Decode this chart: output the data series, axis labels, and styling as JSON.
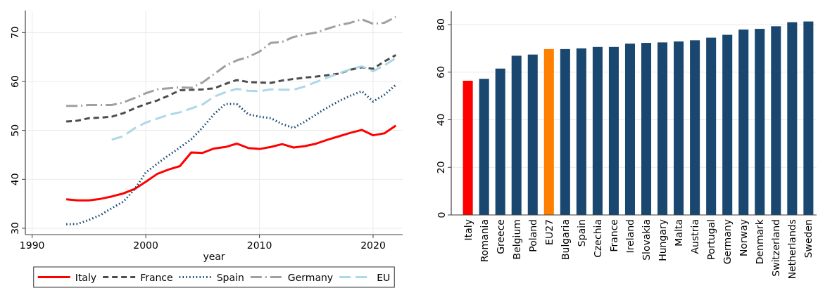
{
  "chart_data": [
    {
      "type": "line",
      "xlabel": "year",
      "x": [
        1993,
        1994,
        1995,
        1996,
        1997,
        1998,
        1999,
        2000,
        2001,
        2002,
        2003,
        2004,
        2005,
        2006,
        2007,
        2008,
        2009,
        2010,
        2011,
        2012,
        2013,
        2014,
        2015,
        2016,
        2017,
        2018,
        2019,
        2020,
        2021,
        2022
      ],
      "series": [
        {
          "name": "Italy",
          "color": "#ff0000",
          "line_style": "solid",
          "values": [
            35.9,
            35.7,
            35.7,
            36.0,
            36.5,
            37.1,
            38.0,
            39.5,
            41.1,
            42.0,
            42.7,
            45.5,
            45.4,
            46.3,
            46.6,
            47.3,
            46.4,
            46.2,
            46.6,
            47.2,
            46.5,
            46.8,
            47.3,
            48.1,
            48.8,
            49.5,
            50.1,
            49.0,
            49.4,
            51.0
          ]
        },
        {
          "name": "France",
          "color": "#4d4d4d",
          "line_style": "dashed",
          "values": [
            51.8,
            52.0,
            52.5,
            52.6,
            52.8,
            53.5,
            54.5,
            55.4,
            56.1,
            57.1,
            58.2,
            58.3,
            58.4,
            58.6,
            59.5,
            60.3,
            59.9,
            59.8,
            59.7,
            60.2,
            60.5,
            60.8,
            61.0,
            61.3,
            61.6,
            62.4,
            62.9,
            62.6,
            64.1,
            65.4
          ]
        },
        {
          "name": "Spain",
          "color": "#1a476f",
          "line_style": "dotted",
          "values": [
            30.8,
            30.9,
            31.7,
            32.7,
            34.1,
            35.4,
            37.9,
            41.4,
            43.2,
            44.9,
            46.5,
            48.2,
            50.6,
            53.3,
            55.4,
            55.4,
            53.3,
            52.8,
            52.5,
            51.3,
            50.5,
            51.8,
            53.3,
            54.7,
            56.0,
            57.1,
            58.0,
            55.9,
            57.3,
            59.3
          ]
        },
        {
          "name": "Germany",
          "color": "#a0a0a0",
          "line_style": "dashdot",
          "values": [
            55.0,
            55.0,
            55.2,
            55.2,
            55.2,
            55.7,
            56.6,
            57.6,
            58.4,
            58.6,
            58.8,
            58.7,
            59.8,
            61.5,
            63.2,
            64.3,
            65.0,
            66.1,
            67.9,
            68.1,
            69.1,
            69.6,
            70.0,
            70.8,
            71.5,
            72.0,
            72.7,
            71.8,
            72.0,
            73.2
          ]
        },
        {
          "name": "EU",
          "color": "#add8e6",
          "line_style": "longdash",
          "x": [
            1997,
            1998,
            1999,
            2000,
            2001,
            2002,
            2003,
            2004,
            2005,
            2006,
            2007,
            2008,
            2009,
            2010,
            2011,
            2012,
            2013,
            2014,
            2015,
            2016,
            2017,
            2018,
            2019,
            2020,
            2021,
            2022
          ],
          "values": [
            48.1,
            48.8,
            50.4,
            51.6,
            52.4,
            53.2,
            53.7,
            54.5,
            55.3,
            56.9,
            57.8,
            58.5,
            58.1,
            58.0,
            58.4,
            58.3,
            58.3,
            59.0,
            59.9,
            60.8,
            61.7,
            62.5,
            63.1,
            62.1,
            63.3,
            64.8
          ]
        }
      ],
      "xlim": [
        1989.4,
        2022.6
      ],
      "ylim": [
        28.7,
        74.5
      ],
      "xticks": [
        1990,
        2000,
        2010,
        2020
      ],
      "yticks": [
        30,
        40,
        50,
        60,
        70
      ],
      "grid": true,
      "legend": "bottom"
    },
    {
      "type": "bar",
      "categories": [
        "Italy",
        "Romania",
        "Greece",
        "Belgium",
        "Poland",
        "EU27",
        "Bulgaria",
        "Spain",
        "Czechia",
        "France",
        "Ireland",
        "Slovakia",
        "Hungary",
        "Malta",
        "Austria",
        "Portugal",
        "Germany",
        "Norway",
        "Denmark",
        "Switzerland",
        "Netherlands",
        "Sweden"
      ],
      "values": [
        56.4,
        57.2,
        61.5,
        66.9,
        67.4,
        69.7,
        69.7,
        70.0,
        70.6,
        70.6,
        72.0,
        72.3,
        72.5,
        72.9,
        73.4,
        74.5,
        75.7,
        77.9,
        78.2,
        79.3,
        81.0,
        81.3
      ],
      "colors": [
        "#ff0000",
        "#1a476f",
        "#1a476f",
        "#1a476f",
        "#1a476f",
        "#ff7f00",
        "#1a476f",
        "#1a476f",
        "#1a476f",
        "#1a476f",
        "#1a476f",
        "#1a476f",
        "#1a476f",
        "#1a476f",
        "#1a476f",
        "#1a476f",
        "#1a476f",
        "#1a476f",
        "#1a476f",
        "#1a476f",
        "#1a476f",
        "#1a476f"
      ],
      "ylim": [
        0,
        85.6
      ],
      "yticks": [
        0,
        20,
        40,
        60,
        80
      ],
      "grid": "y"
    }
  ]
}
